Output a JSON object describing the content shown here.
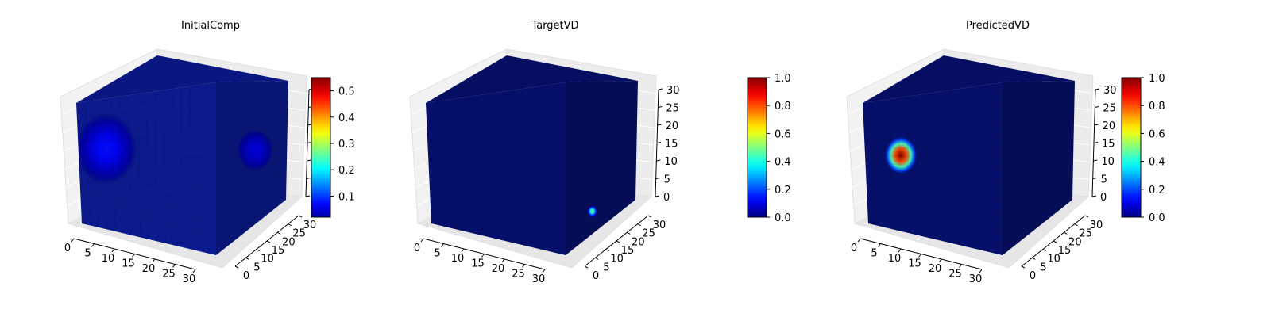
{
  "chart_data": [
    {
      "type": "heatmap",
      "title": "InitialComp",
      "x_ticks": [
        "0",
        "5",
        "10",
        "15",
        "20",
        "25",
        "30"
      ],
      "y_ticks": [
        "0",
        "5",
        "10",
        "15",
        "20",
        "25",
        "30"
      ],
      "z_ticks": [],
      "xlim": [
        0,
        32
      ],
      "ylim": [
        0,
        32
      ],
      "zlim": [
        0,
        32
      ],
      "colorbar": {
        "min": 0.02,
        "max": 0.55,
        "ticks": [
          "0.1",
          "0.2",
          "0.3",
          "0.4",
          "0.5"
        ],
        "tick_values": [
          0.1,
          0.2,
          0.3,
          0.4,
          0.5
        ]
      },
      "colormap": "jet",
      "base_color": "#0b1a8c",
      "blobs": [
        {
          "face": "front",
          "u": 0.2,
          "v": 0.38,
          "r": 0.22,
          "value": 0.14
        },
        {
          "face": "side",
          "u": 0.55,
          "v": 0.48,
          "r": 0.25,
          "value": 0.09
        }
      ]
    },
    {
      "type": "heatmap",
      "title": "TargetVD",
      "x_ticks": [
        "0",
        "5",
        "10",
        "15",
        "20",
        "25",
        "30"
      ],
      "y_ticks": [
        "0",
        "5",
        "10",
        "15",
        "20",
        "25",
        "30"
      ],
      "z_ticks": [
        "0",
        "5",
        "10",
        "15",
        "20",
        "25",
        "30"
      ],
      "xlim": [
        0,
        32
      ],
      "ylim": [
        0,
        32
      ],
      "zlim": [
        0,
        32
      ],
      "colorbar": {
        "min": 0.0,
        "max": 1.0,
        "ticks": [
          "0.0",
          "0.2",
          "0.4",
          "0.6",
          "0.8",
          "1.0"
        ],
        "tick_values": [
          0,
          0.2,
          0.4,
          0.6,
          0.8,
          1.0
        ]
      },
      "colormap": "jet",
      "base_color": "#06106a",
      "blobs": [
        {
          "face": "side",
          "u": 0.38,
          "v": 0.85,
          "r": 0.07,
          "value": 0.5
        }
      ]
    },
    {
      "type": "heatmap",
      "title": "PredictedVD",
      "x_ticks": [
        "0",
        "5",
        "10",
        "15",
        "20",
        "25",
        "30"
      ],
      "y_ticks": [
        "0",
        "5",
        "10",
        "15",
        "20",
        "25",
        "30"
      ],
      "z_ticks": [
        "0",
        "5",
        "10",
        "15",
        "20",
        "25",
        "30"
      ],
      "xlim": [
        0,
        32
      ],
      "ylim": [
        0,
        32
      ],
      "zlim": [
        0,
        32
      ],
      "colorbar": {
        "min": 0.0,
        "max": 1.0,
        "ticks": [
          "0.0",
          "0.2",
          "0.4",
          "0.6",
          "0.8",
          "1.0"
        ],
        "tick_values": [
          0,
          0.2,
          0.4,
          0.6,
          0.8,
          1.0
        ]
      },
      "colormap": "jet",
      "base_color": "#06106a",
      "blobs": [
        {
          "face": "front",
          "u": 0.26,
          "v": 0.43,
          "r": 0.12,
          "value": 1.0
        }
      ]
    }
  ]
}
